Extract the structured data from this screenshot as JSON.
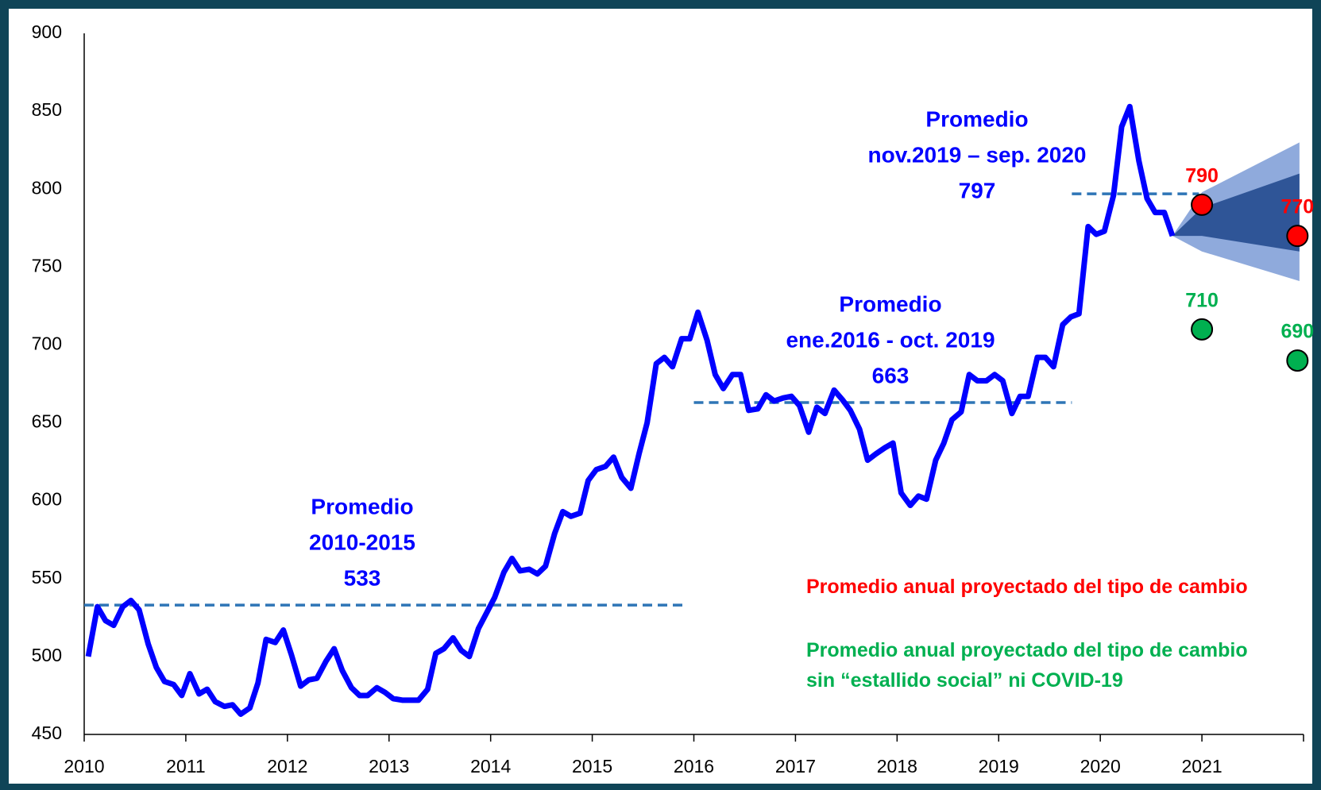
{
  "chart_data": {
    "type": "line",
    "xlim": [
      2010,
      2022
    ],
    "xticks": [
      2010,
      2011,
      2012,
      2013,
      2014,
      2015,
      2016,
      2017,
      2018,
      2019,
      2020,
      2021
    ],
    "ylim": [
      450,
      900
    ],
    "yticks": [
      450,
      500,
      550,
      600,
      650,
      700,
      750,
      800,
      850,
      900
    ],
    "series": [
      {
        "color": "#0000ff",
        "x": [
          2010.04,
          2010.13,
          2010.21,
          2010.29,
          2010.38,
          2010.46,
          2010.54,
          2010.63,
          2010.71,
          2010.79,
          2010.88,
          2010.96,
          2011.04,
          2011.13,
          2011.21,
          2011.29,
          2011.38,
          2011.46,
          2011.54,
          2011.63,
          2011.71,
          2011.79,
          2011.88,
          2011.96,
          2012.04,
          2012.13,
          2012.21,
          2012.29,
          2012.38,
          2012.46,
          2012.54,
          2012.63,
          2012.71,
          2012.79,
          2012.88,
          2012.96,
          2013.04,
          2013.13,
          2013.21,
          2013.29,
          2013.38,
          2013.46,
          2013.54,
          2013.63,
          2013.71,
          2013.79,
          2013.88,
          2013.96,
          2014.04,
          2014.13,
          2014.21,
          2014.29,
          2014.38,
          2014.46,
          2014.54,
          2014.63,
          2014.71,
          2014.79,
          2014.88,
          2014.96,
          2015.04,
          2015.13,
          2015.21,
          2015.29,
          2015.38,
          2015.46,
          2015.54,
          2015.63,
          2015.71,
          2015.79,
          2015.88,
          2015.96,
          2016.04,
          2016.13,
          2016.21,
          2016.29,
          2016.38,
          2016.46,
          2016.54,
          2016.63,
          2016.71,
          2016.79,
          2016.88,
          2016.96,
          2017.04,
          2017.13,
          2017.21,
          2017.29,
          2017.38,
          2017.46,
          2017.54,
          2017.63,
          2017.71,
          2017.79,
          2017.88,
          2017.96,
          2018.04,
          2018.13,
          2018.21,
          2018.29,
          2018.38,
          2018.46,
          2018.54,
          2018.63,
          2018.71,
          2018.79,
          2018.88,
          2018.96,
          2019.04,
          2019.13,
          2019.21,
          2019.29,
          2019.38,
          2019.46,
          2019.54,
          2019.63,
          2019.71,
          2019.79,
          2019.88,
          2019.96,
          2020.04,
          2020.13,
          2020.21,
          2020.29,
          2020.38,
          2020.46,
          2020.54,
          2020.63,
          2020.71
        ],
        "values": [
          500,
          532,
          523,
          520,
          532,
          536,
          530,
          508,
          493,
          484,
          482,
          475,
          489,
          476,
          479,
          471,
          468,
          469,
          463,
          467,
          483,
          511,
          509,
          517,
          501,
          481,
          485,
          486,
          497,
          505,
          491,
          480,
          475,
          475,
          480,
          477,
          473,
          472,
          472,
          472,
          479,
          502,
          505,
          512,
          504,
          500,
          518,
          528,
          538,
          554,
          563,
          555,
          556,
          553,
          558,
          579,
          593,
          590,
          592,
          613,
          620,
          622,
          628,
          615,
          608,
          630,
          650,
          688,
          692,
          686,
          704,
          704,
          721,
          703,
          681,
          672,
          681,
          681,
          658,
          659,
          668,
          664,
          666,
          667,
          661,
          644,
          660,
          656,
          671,
          665,
          658,
          646,
          626,
          630,
          634,
          637,
          605,
          597,
          603,
          601,
          626,
          637,
          652,
          657,
          681,
          677,
          677,
          681,
          677,
          656,
          667,
          667,
          692,
          692,
          686,
          713,
          718,
          720,
          776,
          771,
          773,
          796,
          840,
          853,
          818,
          794,
          785,
          785,
          770
        ]
      }
    ],
    "averages": [
      {
        "label_lines": [
          "Promedio",
          "2010-2015",
          "533"
        ],
        "value": 533,
        "x": [
          2010,
          2015.92
        ]
      },
      {
        "label_lines": [
          "Promedio",
          "ene.2016 - oct. 2019",
          "663"
        ],
        "value": 663,
        "x": [
          2016,
          2019.72
        ]
      },
      {
        "label_lines": [
          "Promedio",
          "nov.2019 – sep. 2020",
          "797"
        ],
        "value": 797,
        "x": [
          2019.72,
          2020.97
        ]
      }
    ],
    "average_color": "#2e75b6",
    "fan": {
      "x": [
        2020.71,
        2021.0,
        2021.96
      ],
      "outer_upper": [
        770,
        798,
        830
      ],
      "outer_lower": [
        770,
        760,
        741
      ],
      "inner_upper": [
        770,
        788,
        810
      ],
      "inner_lower": [
        770,
        770,
        760
      ],
      "outer_color": "#8faadc",
      "inner_color": "#2f5597"
    },
    "projections": [
      {
        "name": "Promedio anual proyectado del tipo de cambio",
        "color": "#ff0000",
        "x": [
          2021.0,
          2021.94
        ],
        "values": [
          790,
          770
        ]
      },
      {
        "name": "Promedio anual proyectado del tipo de cambio\nsin “estallido social” ni COVID-19",
        "color": "#00b050",
        "x": [
          2021.0,
          2021.94
        ],
        "values": [
          710,
          690
        ]
      }
    ]
  }
}
